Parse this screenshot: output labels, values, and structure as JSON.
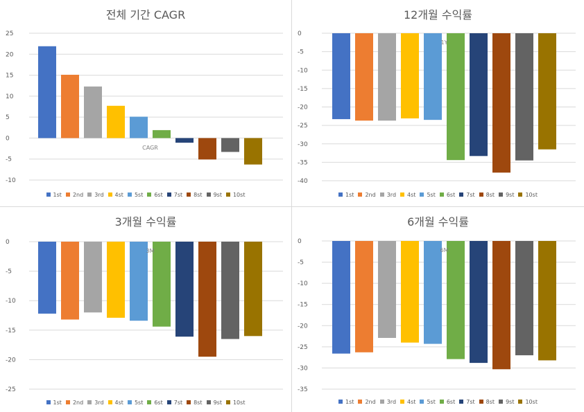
{
  "legend_labels": [
    "1st",
    "2nd",
    "3rd",
    "4st",
    "5st",
    "6st",
    "7st",
    "8st",
    "9st",
    "10st"
  ],
  "colors": [
    "#4472c4",
    "#ed7d31",
    "#a5a5a5",
    "#ffc000",
    "#5b9bd5",
    "#70ad47",
    "#264478",
    "#9e480e",
    "#636363",
    "#997300"
  ],
  "chart_data": [
    {
      "type": "bar",
      "title": "전체 기간 CAGR",
      "category_label": "CAGR",
      "series_names": [
        "1st",
        "2nd",
        "3rd",
        "4st",
        "5st",
        "6st",
        "7st",
        "8st",
        "9st",
        "10st"
      ],
      "values": [
        21.9,
        15.1,
        12.3,
        7.7,
        5.1,
        1.9,
        -1.1,
        -5.1,
        -3.3,
        -6.3
      ],
      "ylim": [
        -10,
        25
      ],
      "ticks": [
        25,
        20,
        15,
        10,
        5,
        0,
        -5,
        -10
      ],
      "tick_labels": [
        "25",
        "20",
        "15",
        "10",
        "5",
        "0",
        "-5",
        "-10"
      ],
      "legend_position": "bottom"
    },
    {
      "type": "bar",
      "title": "12개월 수익률",
      "category_label": "1Y",
      "series_names": [
        "1st",
        "2nd",
        "3rd",
        "4st",
        "5st",
        "6st",
        "7st",
        "8st",
        "9st",
        "10st"
      ],
      "values": [
        -23.3,
        -23.7,
        -23.7,
        -23.1,
        -23.5,
        -34.4,
        -33.3,
        -37.8,
        -34.5,
        -31.5
      ],
      "ylim": [
        -40,
        0
      ],
      "ticks": [
        0,
        -5,
        -10,
        -15,
        -20,
        -25,
        -30,
        -35,
        -40
      ],
      "tick_labels": [
        "0",
        "-5",
        "-10",
        "-15",
        "-20",
        "-25",
        "-30",
        "-35",
        "-40"
      ],
      "legend_position": "bottom"
    },
    {
      "type": "bar",
      "title": "3개월 수익률",
      "category_label": "3M",
      "series_names": [
        "1st",
        "2nd",
        "3rd",
        "4st",
        "5st",
        "6st",
        "7st",
        "8st",
        "9st",
        "10st"
      ],
      "values": [
        -12.2,
        -13.2,
        -12.0,
        -12.9,
        -13.4,
        -14.4,
        -16.1,
        -19.5,
        -16.5,
        -16.0
      ],
      "ylim": [
        -25,
        0
      ],
      "ticks": [
        0,
        -5,
        -10,
        -15,
        -20,
        -25
      ],
      "tick_labels": [
        "0",
        "-5",
        "-10",
        "-15",
        "-20",
        "-25"
      ],
      "legend_position": "bottom"
    },
    {
      "type": "bar",
      "title": "6개월 수익률",
      "category_label": "6M",
      "series_names": [
        "1st",
        "2nd",
        "3rd",
        "4st",
        "5st",
        "6st",
        "7st",
        "8st",
        "9st",
        "10st"
      ],
      "values": [
        -26.6,
        -26.3,
        -22.9,
        -24.0,
        -24.3,
        -27.9,
        -28.8,
        -30.3,
        -27.0,
        -28.2
      ],
      "ylim": [
        -35,
        0
      ],
      "ticks": [
        0,
        -5,
        -10,
        -15,
        -20,
        -25,
        -30,
        -35
      ],
      "tick_labels": [
        "0",
        "-5",
        "-10",
        "-15",
        "-20",
        "-25",
        "-30",
        "-35"
      ],
      "legend_position": "bottom"
    }
  ]
}
